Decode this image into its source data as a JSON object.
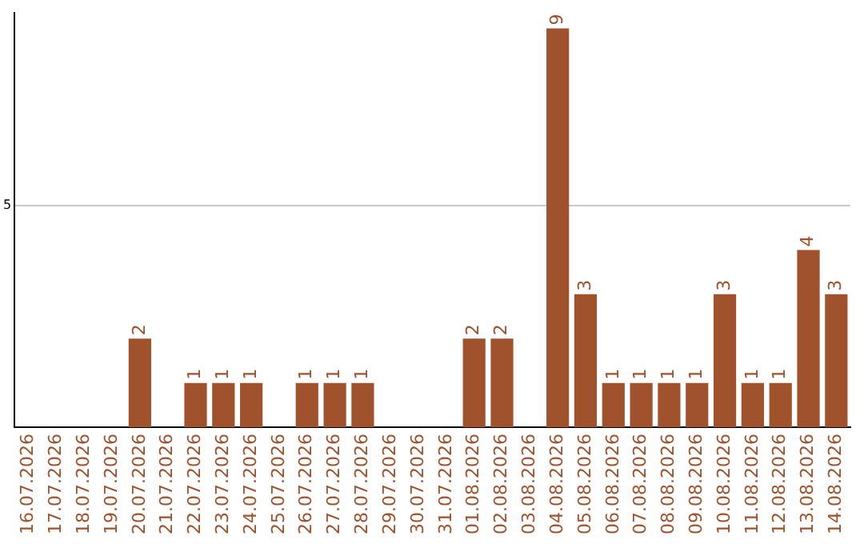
{
  "chart_data": {
    "type": "bar",
    "categories": [
      "16.07.2026",
      "17.07.2026",
      "18.07.2026",
      "19.07.2026",
      "20.07.2026",
      "21.07.2026",
      "22.07.2026",
      "23.07.2026",
      "24.07.2026",
      "25.07.2026",
      "26.07.2026",
      "27.07.2026",
      "28.07.2026",
      "29.07.2026",
      "30.07.2026",
      "31.07.2026",
      "01.08.2026",
      "02.08.2026",
      "03.08.2026",
      "04.08.2026",
      "05.08.2026",
      "06.08.2026",
      "07.08.2026",
      "08.08.2026",
      "09.08.2026",
      "10.08.2026",
      "11.08.2026",
      "12.08.2026",
      "13.08.2026",
      "14.08.2026"
    ],
    "values": [
      0,
      0,
      0,
      0,
      2,
      0,
      1,
      1,
      1,
      0,
      1,
      1,
      1,
      0,
      0,
      0,
      2,
      2,
      0,
      9,
      3,
      1,
      1,
      1,
      1,
      3,
      1,
      1,
      4,
      3
    ],
    "value_labels": [
      null,
      null,
      null,
      null,
      "2",
      null,
      "1",
      "1",
      "1",
      null,
      "1",
      "1",
      "1",
      null,
      null,
      null,
      "2",
      "2",
      null,
      "9",
      "3",
      "1",
      "1",
      "1",
      "1",
      "3",
      "1",
      "1",
      "4",
      "3"
    ],
    "color": "#a0522d",
    "ylim": [
      0,
      9.35
    ],
    "yticks": [
      5
    ],
    "grid": "y"
  }
}
